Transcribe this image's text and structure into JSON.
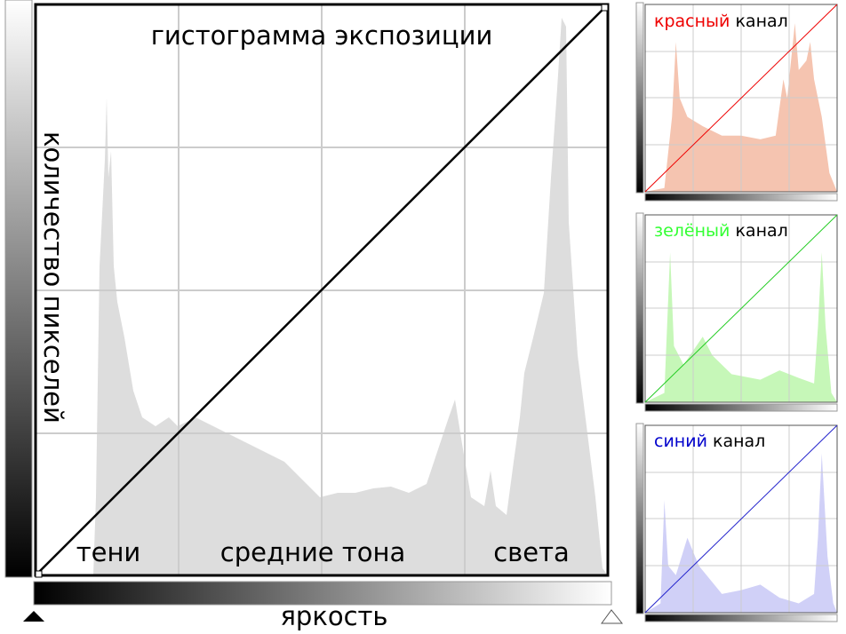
{
  "title": "гистограмма экспозиции",
  "y_axis_label": "количество пикселей",
  "x_axis_label": "яркость",
  "zones": [
    "тени",
    "средние тона",
    "света"
  ],
  "channels": [
    {
      "name": "красный",
      "suffix": "канал"
    },
    {
      "name": "зелёный",
      "suffix": "канал"
    },
    {
      "name": "синий",
      "suffix": "канал"
    }
  ]
}
